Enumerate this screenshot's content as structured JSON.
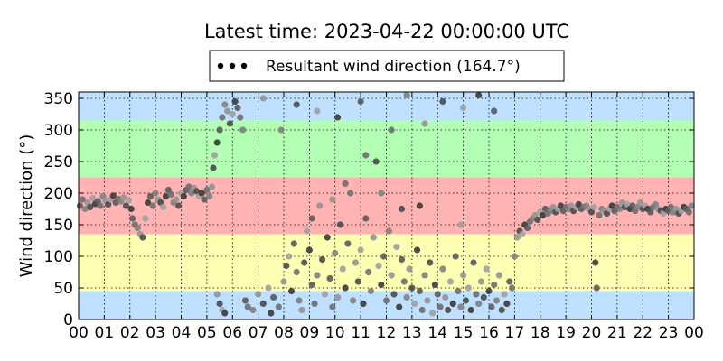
{
  "chart_data": {
    "type": "scatter",
    "title": "Latest time: 2023-04-22 00:00:00 UTC",
    "xlabel": "",
    "ylabel": "Wind direction (°)",
    "xlim": [
      0,
      24
    ],
    "ylim": [
      0,
      360
    ],
    "x_ticks": [
      "00",
      "01",
      "02",
      "03",
      "04",
      "05",
      "06",
      "07",
      "08",
      "09",
      "10",
      "11",
      "12",
      "13",
      "14",
      "15",
      "16",
      "17",
      "18",
      "19",
      "20",
      "21",
      "22",
      "23",
      "00"
    ],
    "y_ticks": [
      0,
      50,
      100,
      150,
      200,
      250,
      300,
      350
    ],
    "grid": true,
    "legend_position": "top-center",
    "bands": [
      {
        "from": 0,
        "to": 45,
        "color": "#bfe0ff"
      },
      {
        "from": 45,
        "to": 135,
        "color": "#ffffb3"
      },
      {
        "from": 135,
        "to": 225,
        "color": "#ffb3b3"
      },
      {
        "from": 225,
        "to": 315,
        "color": "#b3ffb3"
      },
      {
        "from": 315,
        "to": 360,
        "color": "#bfe0ff"
      }
    ],
    "series": [
      {
        "name": "Resultant wind direction (164.7°)",
        "points": [
          [
            0.05,
            180
          ],
          [
            0.15,
            190
          ],
          [
            0.25,
            175
          ],
          [
            0.35,
            185
          ],
          [
            0.45,
            178
          ],
          [
            0.55,
            192
          ],
          [
            0.65,
            183
          ],
          [
            0.75,
            187
          ],
          [
            0.85,
            180
          ],
          [
            0.95,
            195
          ],
          [
            1.05,
            188
          ],
          [
            1.15,
            182
          ],
          [
            1.25,
            190
          ],
          [
            1.35,
            196
          ],
          [
            1.45,
            185
          ],
          [
            1.55,
            191
          ],
          [
            1.65,
            187
          ],
          [
            1.75,
            193
          ],
          [
            1.85,
            180
          ],
          [
            1.95,
            189
          ],
          [
            2.05,
            175
          ],
          [
            2.1,
            160
          ],
          [
            2.2,
            150
          ],
          [
            2.3,
            145
          ],
          [
            2.4,
            135
          ],
          [
            2.5,
            130
          ],
          [
            2.6,
            160
          ],
          [
            2.7,
            185
          ],
          [
            2.8,
            195
          ],
          [
            2.9,
            180
          ],
          [
            3.0,
            200
          ],
          [
            3.1,
            190
          ],
          [
            3.2,
            185
          ],
          [
            3.3,
            178
          ],
          [
            3.4,
            195
          ],
          [
            3.5,
            205
          ],
          [
            3.6,
            198
          ],
          [
            3.7,
            185
          ],
          [
            3.8,
            190
          ],
          [
            3.9,
            180
          ],
          [
            4.0,
            200
          ],
          [
            4.1,
            195
          ],
          [
            4.2,
            205
          ],
          [
            4.3,
            210
          ],
          [
            4.4,
            200
          ],
          [
            4.5,
            208
          ],
          [
            4.6,
            203
          ],
          [
            4.7,
            195
          ],
          [
            4.8,
            200
          ],
          [
            4.9,
            190
          ],
          [
            5.0,
            205
          ],
          [
            5.1,
            195
          ],
          [
            5.2,
            210
          ],
          [
            5.25,
            240
          ],
          [
            5.3,
            260
          ],
          [
            5.4,
            280
          ],
          [
            5.5,
            300
          ],
          [
            5.6,
            320
          ],
          [
            5.7,
            340
          ],
          [
            5.8,
            330
          ],
          [
            5.9,
            310
          ],
          [
            6.0,
            325
          ],
          [
            6.1,
            345
          ],
          [
            6.2,
            335
          ],
          [
            6.3,
            320
          ],
          [
            6.4,
            300
          ],
          [
            5.4,
            40
          ],
          [
            5.5,
            25
          ],
          [
            5.6,
            15
          ],
          [
            5.7,
            10
          ],
          [
            6.5,
            30
          ],
          [
            6.6,
            20
          ],
          [
            6.8,
            15
          ],
          [
            7.0,
            40
          ],
          [
            7.2,
            25
          ],
          [
            7.4,
            50
          ],
          [
            7.5,
            10
          ],
          [
            7.6,
            35
          ],
          [
            7.8,
            20
          ],
          [
            7.9,
            300
          ],
          [
            8.0,
            60
          ],
          [
            8.1,
            85
          ],
          [
            8.2,
            100
          ],
          [
            8.3,
            45
          ],
          [
            8.4,
            120
          ],
          [
            8.5,
            75
          ],
          [
            8.6,
            30
          ],
          [
            8.7,
            15
          ],
          [
            8.8,
            90
          ],
          [
            8.9,
            140
          ],
          [
            9.0,
            110
          ],
          [
            9.1,
            55
          ],
          [
            9.2,
            25
          ],
          [
            9.3,
            70
          ],
          [
            9.4,
            180
          ],
          [
            9.5,
            95
          ],
          [
            9.6,
            40
          ],
          [
            9.7,
            130
          ],
          [
            9.8,
            65
          ],
          [
            9.9,
            20
          ],
          [
            10.0,
            105
          ],
          [
            10.1,
            35
          ],
          [
            10.2,
            150
          ],
          [
            10.3,
            80
          ],
          [
            10.4,
            50
          ],
          [
            10.5,
            120
          ],
          [
            10.6,
            200
          ],
          [
            10.7,
            30
          ],
          [
            10.8,
            90
          ],
          [
            10.9,
            60
          ],
          [
            11.0,
            110
          ],
          [
            11.1,
            25
          ],
          [
            11.2,
            160
          ],
          [
            11.3,
            75
          ],
          [
            11.4,
            45
          ],
          [
            11.5,
            130
          ],
          [
            11.6,
            250
          ],
          [
            11.7,
            85
          ],
          [
            11.8,
            55
          ],
          [
            11.9,
            100
          ],
          [
            12.0,
            30
          ],
          [
            12.1,
            140
          ],
          [
            12.2,
            70
          ],
          [
            12.3,
            40
          ],
          [
            12.4,
            115
          ],
          [
            12.5,
            20
          ],
          [
            12.6,
            95
          ],
          [
            12.7,
            60
          ],
          [
            12.8,
            35
          ],
          [
            12.9,
            80
          ],
          [
            13.0,
            50
          ],
          [
            13.1,
            25
          ],
          [
            13.2,
            110
          ],
          [
            13.3,
            45
          ],
          [
            13.4,
            15
          ],
          [
            13.5,
            70
          ],
          [
            13.6,
            30
          ],
          [
            13.7,
            90
          ],
          [
            13.8,
            10
          ],
          [
            13.9,
            55
          ],
          [
            14.0,
            40
          ],
          [
            14.1,
            20
          ],
          [
            14.2,
            80
          ],
          [
            14.3,
            35
          ],
          [
            14.4,
            15
          ],
          [
            14.5,
            60
          ],
          [
            14.6,
            25
          ],
          [
            14.7,
            100
          ],
          [
            14.8,
            45
          ],
          [
            14.9,
            20
          ],
          [
            15.0,
            70
          ],
          [
            15.1,
            30
          ],
          [
            15.2,
            50
          ],
          [
            15.3,
            15
          ],
          [
            15.4,
            90
          ],
          [
            15.5,
            40
          ],
          [
            15.6,
            25
          ],
          [
            15.7,
            60
          ],
          [
            15.8,
            35
          ],
          [
            15.9,
            80
          ],
          [
            16.0,
            45
          ],
          [
            16.1,
            20
          ],
          [
            16.2,
            55
          ],
          [
            16.3,
            30
          ],
          [
            16.4,
            70
          ],
          [
            16.5,
            15
          ],
          [
            16.6,
            40
          ],
          [
            16.7,
            25
          ],
          [
            16.8,
            60
          ],
          [
            16.9,
            50
          ],
          [
            17.0,
            100
          ],
          [
            17.1,
            130
          ],
          [
            17.2,
            140
          ],
          [
            17.3,
            135
          ],
          [
            17.4,
            150
          ],
          [
            17.5,
            145
          ],
          [
            17.6,
            155
          ],
          [
            17.7,
            160
          ],
          [
            17.8,
            165
          ],
          [
            17.9,
            158
          ],
          [
            18.0,
            170
          ],
          [
            18.1,
            165
          ],
          [
            18.2,
            175
          ],
          [
            18.3,
            168
          ],
          [
            18.4,
            172
          ],
          [
            18.5,
            178
          ],
          [
            18.6,
            170
          ],
          [
            18.7,
            175
          ],
          [
            18.8,
            180
          ],
          [
            18.9,
            172
          ],
          [
            19.0,
            178
          ],
          [
            19.1,
            175
          ],
          [
            19.2,
            180
          ],
          [
            19.3,
            172
          ],
          [
            19.4,
            178
          ],
          [
            19.5,
            182
          ],
          [
            19.6,
            175
          ],
          [
            19.7,
            178
          ],
          [
            19.8,
            180
          ],
          [
            19.9,
            175
          ],
          [
            20.0,
            170
          ],
          [
            20.1,
            178
          ],
          [
            20.15,
            90
          ],
          [
            20.2,
            50
          ],
          [
            20.3,
            165
          ],
          [
            20.4,
            175
          ],
          [
            20.5,
            172
          ],
          [
            20.6,
            168
          ],
          [
            20.7,
            175
          ],
          [
            20.8,
            180
          ],
          [
            20.9,
            172
          ],
          [
            21.0,
            178
          ],
          [
            21.1,
            175
          ],
          [
            21.2,
            185
          ],
          [
            21.3,
            178
          ],
          [
            21.4,
            182
          ],
          [
            21.5,
            175
          ],
          [
            21.6,
            180
          ],
          [
            21.7,
            172
          ],
          [
            21.8,
            178
          ],
          [
            21.9,
            185
          ],
          [
            22.0,
            175
          ],
          [
            22.1,
            180
          ],
          [
            22.2,
            175
          ],
          [
            22.3,
            170
          ],
          [
            22.4,
            178
          ],
          [
            22.5,
            182
          ],
          [
            22.6,
            175
          ],
          [
            22.7,
            172
          ],
          [
            22.8,
            168
          ],
          [
            22.9,
            175
          ],
          [
            23.0,
            172
          ],
          [
            23.1,
            178
          ],
          [
            23.2,
            170
          ],
          [
            23.3,
            175
          ],
          [
            23.4,
            168
          ],
          [
            23.5,
            172
          ],
          [
            23.6,
            178
          ],
          [
            23.7,
            175
          ],
          [
            23.8,
            170
          ],
          [
            23.9,
            180
          ],
          [
            7.2,
            350
          ],
          [
            8.5,
            340
          ],
          [
            9.3,
            330
          ],
          [
            10.1,
            320
          ],
          [
            11.0,
            345
          ],
          [
            12.2,
            300
          ],
          [
            12.8,
            355
          ],
          [
            13.5,
            310
          ],
          [
            14.2,
            345
          ],
          [
            15.0,
            335
          ],
          [
            15.6,
            355
          ],
          [
            16.2,
            330
          ],
          [
            10.4,
            215
          ],
          [
            11.8,
            200
          ],
          [
            9.9,
            190
          ],
          [
            12.6,
            175
          ],
          [
            14.9,
            150
          ],
          [
            13.3,
            180
          ],
          [
            9.1,
            160
          ],
          [
            11.2,
            260
          ]
        ]
      }
    ]
  }
}
